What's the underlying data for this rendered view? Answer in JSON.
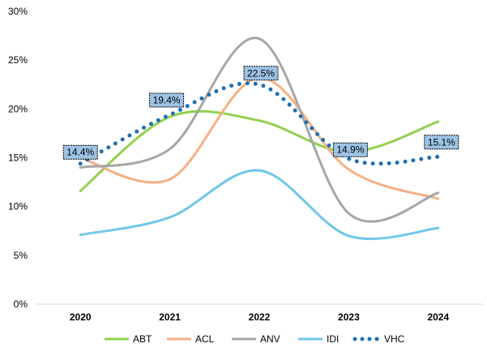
{
  "chart_data": {
    "type": "line",
    "title": "",
    "xlabel": "",
    "ylabel": "",
    "categories": [
      "2020",
      "2021",
      "2022",
      "2023",
      "2024"
    ],
    "ylim": [
      0,
      30
    ],
    "yticks": [
      0,
      5,
      10,
      15,
      20,
      25,
      30
    ],
    "ytick_labels": [
      "0%",
      "5%",
      "10%",
      "15%",
      "20%",
      "25%",
      "30%"
    ],
    "grid": false,
    "legend_position": "bottom",
    "series": [
      {
        "name": "ABT",
        "values": [
          11.6,
          19.2,
          18.8,
          15.6,
          18.7
        ],
        "color": "#92D050",
        "style": "solid"
      },
      {
        "name": "ACL",
        "values": [
          15.0,
          12.8,
          23.2,
          13.8,
          10.8
        ],
        "color": "#F4B183",
        "style": "solid"
      },
      {
        "name": "ANV",
        "values": [
          14.0,
          15.9,
          27.2,
          9.3,
          11.4
        ],
        "color": "#A6A6A6",
        "style": "solid"
      },
      {
        "name": "IDI",
        "values": [
          7.1,
          8.9,
          13.7,
          7.0,
          7.8
        ],
        "color": "#70C7E8",
        "style": "solid"
      },
      {
        "name": "VHC",
        "values": [
          14.4,
          19.4,
          22.5,
          14.9,
          15.1
        ],
        "color": "#1F6FB2",
        "style": "dotted",
        "data_labels": [
          "14.4%",
          "19.4%",
          "22.5%",
          "14.9%",
          "15.1%"
        ]
      }
    ]
  }
}
